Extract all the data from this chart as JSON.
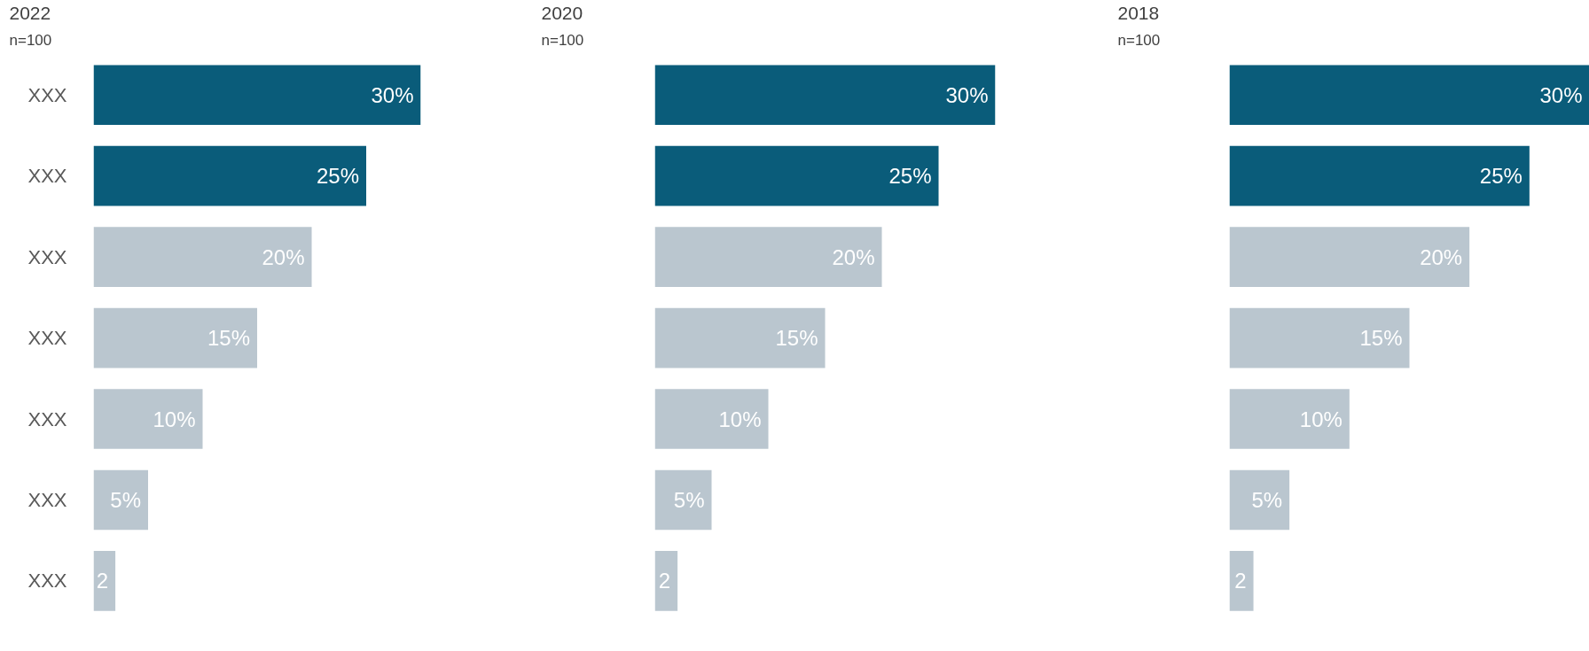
{
  "chart_data": [
    {
      "type": "bar",
      "orientation": "horizontal",
      "title": "2022",
      "subtitle": "n=100",
      "categories": [
        "XXX",
        "XXX",
        "XXX",
        "XXX",
        "XXX",
        "XXX",
        "XXX"
      ],
      "values": [
        30,
        25,
        20,
        15,
        10,
        5,
        2
      ],
      "colors": [
        "#0a5c7a",
        "#0a5c7a",
        "#bac6cf",
        "#bac6cf",
        "#bac6cf",
        "#bac6cf",
        "#bac6cf"
      ],
      "value_labels": [
        "30%",
        "25%",
        "20%",
        "15%",
        "10%",
        "5%",
        "2"
      ],
      "tick_labels": "y"
    },
    {
      "type": "bar",
      "orientation": "horizontal",
      "title": "2020",
      "subtitle": "n=100",
      "categories": [
        null,
        null,
        null,
        null,
        null,
        null,
        null
      ],
      "values": [
        30,
        25,
        20,
        15,
        10,
        5,
        2
      ],
      "colors": [
        "#0a5c7a",
        "#0a5c7a",
        "#bac6cf",
        "#bac6cf",
        "#bac6cf",
        "#bac6cf",
        "#bac6cf"
      ],
      "value_labels": [
        "30%",
        "25%",
        "20%",
        "15%",
        "10%",
        "5%",
        "2"
      ],
      "tick_labels": false
    },
    {
      "type": "bar",
      "orientation": "horizontal",
      "title": "2018",
      "subtitle": "n=100",
      "categories": [
        null,
        null,
        null,
        null,
        null,
        null,
        null
      ],
      "values": [
        30,
        25,
        20,
        15,
        10,
        5,
        2
      ],
      "colors": [
        "#0a5c7a",
        "#0a5c7a",
        "#bac6cf",
        "#bac6cf",
        "#bac6cf",
        "#bac6cf",
        "#bac6cf"
      ],
      "value_labels": [
        "30%",
        "25%",
        "20%",
        "15%",
        "10%",
        "5%",
        "2"
      ],
      "tick_labels": false
    }
  ]
}
